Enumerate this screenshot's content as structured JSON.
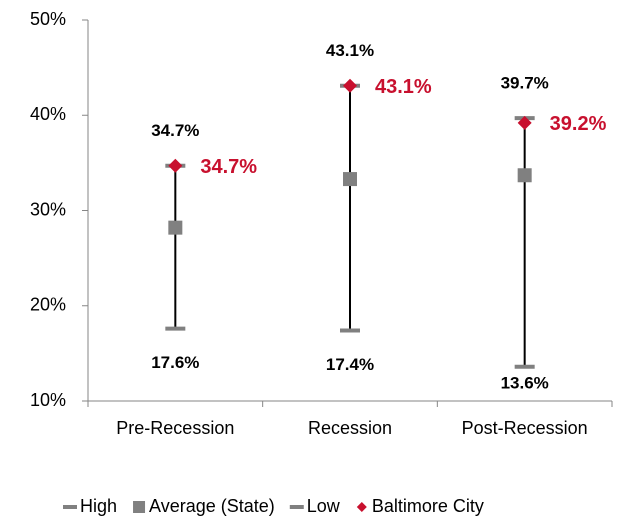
{
  "chart_data": {
    "type": "high-low",
    "categories": [
      "Pre-Recession",
      "Recession",
      "Post-Recession"
    ],
    "series": [
      {
        "name": "High",
        "color": "#808080",
        "marker": "dash",
        "values": [
          34.7,
          43.1,
          39.7
        ],
        "value_labels": [
          "34.7%",
          "43.1%",
          "39.7%"
        ],
        "label_position": "above",
        "label_color": "#000000"
      },
      {
        "name": "Average (State)",
        "color": "#808080",
        "marker": "square",
        "values": [
          28.2,
          33.3,
          33.7
        ]
      },
      {
        "name": "Low",
        "color": "#808080",
        "marker": "dash",
        "values": [
          17.6,
          17.4,
          13.6
        ],
        "value_labels": [
          "17.6%",
          "17.4%",
          "13.6%"
        ],
        "label_position": "below",
        "label_color": "#000000"
      },
      {
        "name": "Baltimore City",
        "color": "#c8102e",
        "marker": "diamond",
        "values": [
          34.7,
          43.1,
          39.2
        ],
        "value_labels": [
          "34.7%",
          "43.1%",
          "39.2%"
        ],
        "label_position": "right",
        "label_color": "#c8102e"
      }
    ],
    "ylim": [
      10,
      50
    ],
    "yticks": [
      {
        "value": 10,
        "label": "10%"
      },
      {
        "value": 20,
        "label": "20%"
      },
      {
        "value": 30,
        "label": "30%"
      },
      {
        "value": 40,
        "label": "40%"
      },
      {
        "value": 50,
        "label": "50%"
      }
    ],
    "legend": "bottom"
  }
}
